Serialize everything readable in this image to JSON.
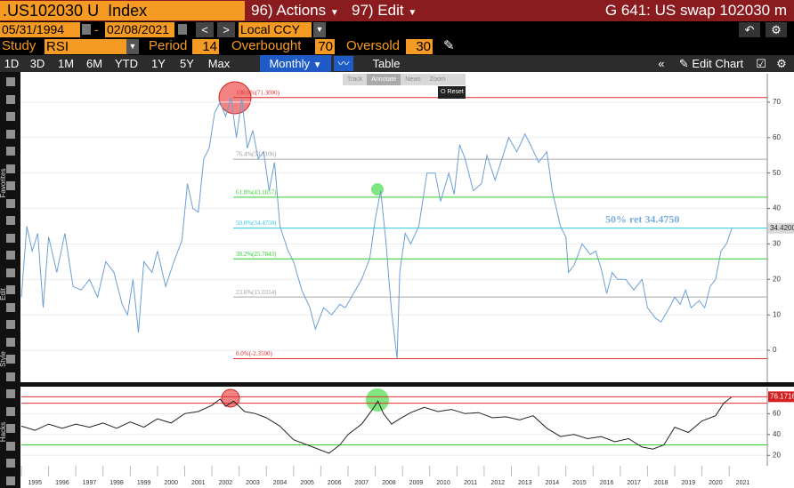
{
  "header": {
    "ticker": ".US102030 U  Index",
    "actions": "96) Actions",
    "edit": "97) Edit",
    "title": "G 641: US swap 102030 m"
  },
  "range": {
    "start": "05/31/1994",
    "separator": "-",
    "end": "02/08/2021",
    "currency": "Local CCY"
  },
  "study": {
    "label": "Study",
    "name": "RSI",
    "period_label": "Period",
    "period": 14,
    "overbought_label": "Overbought",
    "overbought": 70,
    "oversold_label": "Oversold",
    "oversold": 30
  },
  "toolbar": {
    "periods": [
      "1D",
      "3D",
      "1M",
      "6M",
      "YTD",
      "1Y",
      "5Y",
      "Max"
    ],
    "frequency": "Monthly",
    "table": "Table",
    "edit_chart": "Edit Chart"
  },
  "mini_toolbar": [
    "Track",
    "Annotate",
    "News",
    "Zoom",
    "Reset"
  ],
  "side_labels": [
    "Favorites",
    "Edit",
    "Style",
    "Hacks"
  ],
  "chart_data": [
    {
      "type": "line",
      "color": "#6a9fd4",
      "x": [
        1995.0,
        1995.2,
        1995.4,
        1995.6,
        1995.8,
        1996.0,
        1996.3,
        1996.6,
        1996.9,
        1997.2,
        1997.5,
        1997.8,
        1998.1,
        1998.4,
        1998.7,
        1998.9,
        1999.1,
        1999.3,
        1999.5,
        1999.8,
        2000.0,
        2000.3,
        2000.6,
        2000.9,
        2001.1,
        2001.3,
        2001.5,
        2001.7,
        2001.9,
        2002.1,
        2002.3,
        2002.5,
        2002.7,
        2002.9,
        2003.1,
        2003.3,
        2003.5,
        2003.7,
        2003.9,
        2004.1,
        2004.3,
        2004.5,
        2004.8,
        2005.0,
        2005.3,
        2005.6,
        2005.8,
        2006.1,
        2006.4,
        2006.7,
        2006.9,
        2007.2,
        2007.5,
        2007.8,
        2008.0,
        2008.2,
        2008.4,
        2008.5,
        2008.6,
        2008.8,
        2008.9,
        2009.1,
        2009.3,
        2009.6,
        2009.9,
        2010.2,
        2010.4,
        2010.7,
        2010.9,
        2011.1,
        2011.3,
        2011.6,
        2011.9,
        2012.1,
        2012.4,
        2012.7,
        2012.9,
        2013.2,
        2013.5,
        2013.7,
        2014.0,
        2014.3,
        2014.5,
        2014.8,
        2015.0,
        2015.1,
        2015.3,
        2015.6,
        2015.9,
        2016.1,
        2016.3,
        2016.5,
        2016.7,
        2016.9,
        2017.2,
        2017.5,
        2017.8,
        2018.0,
        2018.3,
        2018.5,
        2018.8,
        2019.0,
        2019.2,
        2019.4,
        2019.6,
        2019.9,
        2020.1,
        2020.3,
        2020.5,
        2020.7,
        2020.9,
        2021.1
      ],
      "values": [
        15,
        35,
        28,
        33,
        12,
        32,
        22,
        33,
        18,
        17,
        20,
        15,
        25,
        22,
        13,
        10,
        20,
        5,
        25,
        22,
        28,
        18,
        25,
        31,
        47,
        40,
        39,
        54,
        57,
        67,
        70,
        66,
        71.3,
        60,
        71,
        57,
        62,
        54,
        56,
        45,
        53,
        35,
        28,
        25,
        17,
        12,
        6,
        12,
        10,
        13,
        12,
        16,
        20,
        26,
        37,
        45,
        30,
        20,
        11,
        -2.35,
        22,
        33,
        30,
        35,
        50,
        50,
        42,
        50,
        44,
        58,
        54,
        45,
        47,
        55,
        48,
        55,
        60,
        56,
        61,
        58,
        53,
        56,
        45,
        35,
        32,
        22,
        24,
        30,
        27,
        28,
        23,
        16,
        22,
        20,
        20,
        17,
        20,
        12,
        9,
        8,
        12,
        15,
        13,
        17,
        12,
        14,
        12,
        18,
        20,
        28,
        30,
        34.42
      ],
      "last_value_label": "34.4200",
      "levels": [
        {
          "label": "100.0%(71.3000)",
          "value": 71.3,
          "color": "#e03030"
        },
        {
          "label": "76.4%(53.9106)",
          "value": 53.9106,
          "color": "#a8a8a8"
        },
        {
          "label": "61.8%(43.1657)",
          "value": 43.1657,
          "color": "#2ecc2e"
        },
        {
          "label": "50.0%(34.4750)",
          "value": 34.475,
          "color": "#30c8e8"
        },
        {
          "label": "38.2%(25.7843)",
          "value": 25.7843,
          "color": "#2ecc2e"
        },
        {
          "label": "23.6%(15.0314)",
          "value": 15.0314,
          "color": "#a8a8a8"
        },
        {
          "label": "0.0%(-2.3500)",
          "value": -2.35,
          "color": "#e03030"
        }
      ],
      "annotation": "50% ret 34.4750",
      "xlim": [
        1995.0,
        2022.4
      ],
      "ylim": [
        -9,
        78
      ],
      "yticks": [
        0,
        10,
        20,
        30,
        40,
        50,
        60,
        70
      ],
      "grid": true
    },
    {
      "type": "line",
      "color": "#222222",
      "x": [
        1995.0,
        1995.5,
        1996.0,
        1996.5,
        1997.0,
        1997.5,
        1998.0,
        1998.5,
        1999.0,
        1999.5,
        2000.0,
        2000.5,
        2001.0,
        2001.5,
        2002.0,
        2002.3,
        2002.5,
        2002.8,
        2003.2,
        2003.6,
        2004.0,
        2004.5,
        2005.0,
        2005.5,
        2006.0,
        2006.3,
        2006.7,
        2007.0,
        2007.5,
        2007.9,
        2008.1,
        2008.3,
        2008.6,
        2008.9,
        2009.3,
        2009.8,
        2010.3,
        2010.8,
        2011.3,
        2011.8,
        2012.3,
        2012.8,
        2013.3,
        2013.8,
        2014.3,
        2014.8,
        2015.3,
        2015.8,
        2016.3,
        2016.8,
        2017.3,
        2017.8,
        2018.2,
        2018.6,
        2019.0,
        2019.5,
        2020.0,
        2020.5,
        2020.8,
        2021.1
      ],
      "values": [
        48,
        44,
        50,
        46,
        50,
        47,
        51,
        46,
        52,
        47,
        55,
        51,
        60,
        62,
        68,
        74,
        67,
        72,
        62,
        60,
        56,
        48,
        35,
        30,
        25,
        22,
        30,
        40,
        50,
        64,
        72,
        60,
        50,
        55,
        61,
        66,
        62,
        64,
        60,
        61,
        56,
        57,
        54,
        58,
        46,
        38,
        40,
        36,
        38,
        33,
        36,
        28,
        26,
        30,
        47,
        42,
        53,
        58,
        70,
        76.17
      ],
      "last_value_label": "76.1716",
      "xlim": [
        1995.0,
        2022.4
      ],
      "ylim": [
        10,
        85
      ],
      "yticks": [
        20,
        40,
        60
      ],
      "grid": true,
      "xticks": [
        1995,
        1996,
        1997,
        1998,
        1999,
        2000,
        2001,
        2002,
        2003,
        2004,
        2005,
        2006,
        2007,
        2008,
        2009,
        2010,
        2011,
        2012,
        2013,
        2014,
        2015,
        2016,
        2017,
        2018,
        2019,
        2020,
        2021
      ]
    }
  ]
}
